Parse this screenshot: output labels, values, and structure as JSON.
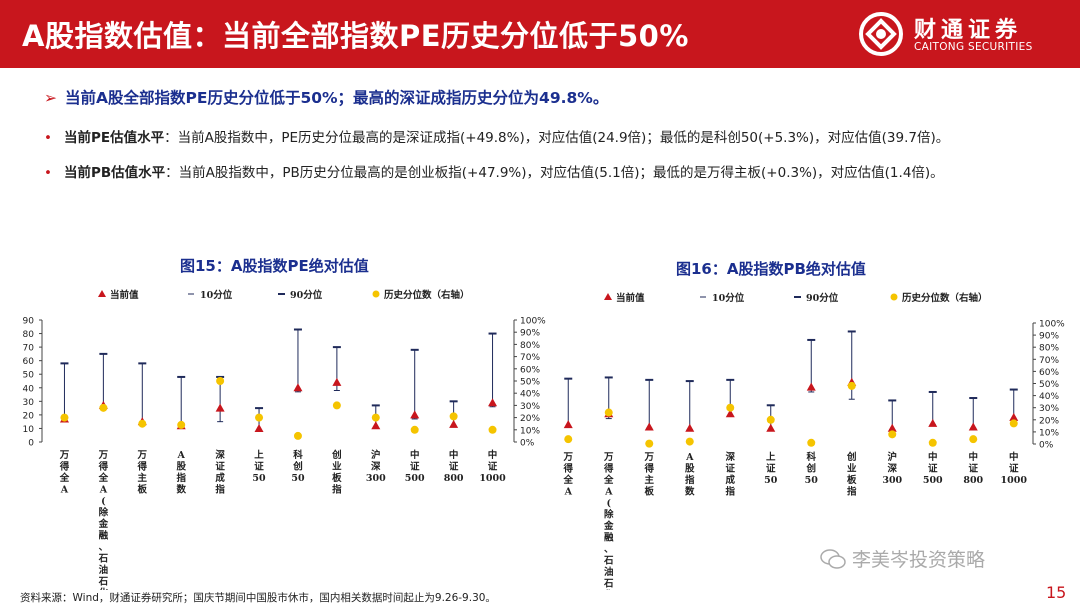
{
  "header": {
    "title": "A股指数估值：当前全部指数PE历史分位低于50%",
    "logo_cn": "财通证券",
    "logo_en": "CAITONG SECURITIES"
  },
  "summary": {
    "headline": "当前A股全部指数PE历史分位低于50%；最高的深证成指历史分位为49.8%。",
    "pe_label": "当前PE估值水平",
    "pe_text": "：当前A股指数中，PE历史分位最高的是深证成指(+49.8%)，对应估值(24.9倍)；最低的是科创50(+5.3%)，对应估值(39.7倍)。",
    "pb_label": "当前PB估值水平",
    "pb_text": "：当前A股指数中，PB历史分位最高的是创业板指(+47.9%)，对应估值(5.1倍)；最低的是万得主板(+0.3%)，对应估值(1.4倍)。"
  },
  "chart_data": [
    {
      "type": "scatter",
      "title": "图15：A股指数PE绝对估值",
      "categories": [
        "万得全A",
        "万得全A(除金融、石油石化)",
        "万得主板",
        "A股指数",
        "深证成指",
        "上证50",
        "科创50",
        "创业板指",
        "沪深300",
        "中证500",
        "中证800",
        "中证1000"
      ],
      "category_labels": [
        "万得全A",
        "万得全A(除金融、石油石化)",
        "万得主板",
        "A股指数",
        "深证成指",
        "上证50",
        "科创50",
        "创业板指",
        "沪深300",
        "中证500",
        "中证800",
        "中证1000"
      ],
      "legend": [
        "当前值",
        "10分位",
        "90分位",
        "历史分位数（右轴）"
      ],
      "ylim": [
        0,
        90
      ],
      "y_ticks": [
        0,
        10,
        20,
        30,
        40,
        50,
        60,
        70,
        80,
        90
      ],
      "y2lim": [
        0,
        100
      ],
      "y2_ticks": [
        "0%",
        "10%",
        "20%",
        "30%",
        "40%",
        "50%",
        "60%",
        "70%",
        "80%",
        "90%",
        "100%"
      ],
      "series": [
        {
          "name": "当前值",
          "values": [
            17,
            27,
            15,
            12,
            25,
            10,
            40,
            44,
            12,
            20,
            13,
            29
          ]
        },
        {
          "name": "10分位",
          "values": [
            15,
            24,
            13,
            11,
            15,
            8,
            37,
            38,
            10,
            17,
            11,
            26
          ]
        },
        {
          "name": "90分位",
          "values": [
            58,
            65,
            58,
            48,
            48,
            25,
            83,
            70,
            27,
            68,
            30,
            80
          ]
        },
        {
          "name": "历史分位数（右轴）",
          "values": [
            20,
            28,
            15,
            14,
            50,
            20,
            5,
            30,
            20,
            10,
            21,
            10
          ]
        }
      ],
      "colors": {
        "current": "#c8161d",
        "p10": "#1f2a5a",
        "p90": "#1f2a5a",
        "pct": "#f5c400"
      }
    },
    {
      "type": "scatter",
      "title": "图16：A股指数PB绝对估值",
      "categories": [
        "万得全A",
        "万得全A(除金融、石油石化)",
        "万得主板",
        "A股指数",
        "深证成指",
        "上证50",
        "科创50",
        "创业板指",
        "沪深300",
        "中证500",
        "中证800",
        "中证1000"
      ],
      "category_labels": [
        "万得全A",
        "万得全A(除金融、石油石化)",
        "万得主板",
        "A股指数",
        "深证成指",
        "上证50",
        "科创50",
        "创业板指",
        "沪深300",
        "中证500",
        "中证800",
        "中证1000"
      ],
      "legend": [
        "当前值",
        "10分位",
        "90分位",
        "历史分位数（右轴）"
      ],
      "y2lim": [
        0,
        100
      ],
      "y2_ticks": [
        "0%",
        "10%",
        "20%",
        "30%",
        "40%",
        "50%",
        "60%",
        "70%",
        "80%",
        "90%",
        "100%"
      ],
      "series": [
        {
          "name": "当前值",
          "values": [
            1.6,
            2.5,
            1.4,
            1.3,
            2.5,
            1.3,
            4.7,
            5.1,
            1.3,
            1.7,
            1.4,
            2.2
          ]
        },
        {
          "name": "10分位",
          "values": [
            1.4,
            2.1,
            1.3,
            1.2,
            2.3,
            1.1,
            4.3,
            3.7,
            1.2,
            1.6,
            1.3,
            2.0
          ]
        },
        {
          "name": "90分位",
          "values": [
            5.4,
            5.5,
            5.3,
            5.2,
            5.3,
            3.2,
            8.6,
            9.3,
            3.6,
            4.3,
            3.8,
            4.5
          ]
        },
        {
          "name": "历史分位数（右轴）",
          "values": [
            4,
            26,
            0.3,
            2,
            30,
            20,
            1,
            48,
            8,
            1,
            4,
            17
          ]
        }
      ],
      "colors": {
        "current": "#c8161d",
        "p10": "#1f2a5a",
        "p90": "#1f2a5a",
        "pct": "#f5c400"
      }
    }
  ],
  "footer": {
    "source": "资料来源：Wind，财通证券研究所；国庆节期间中国股市休市，国内相关数据时间起止为9.26-9.30。",
    "wechat": "李美岑投资策略",
    "page": "15"
  }
}
